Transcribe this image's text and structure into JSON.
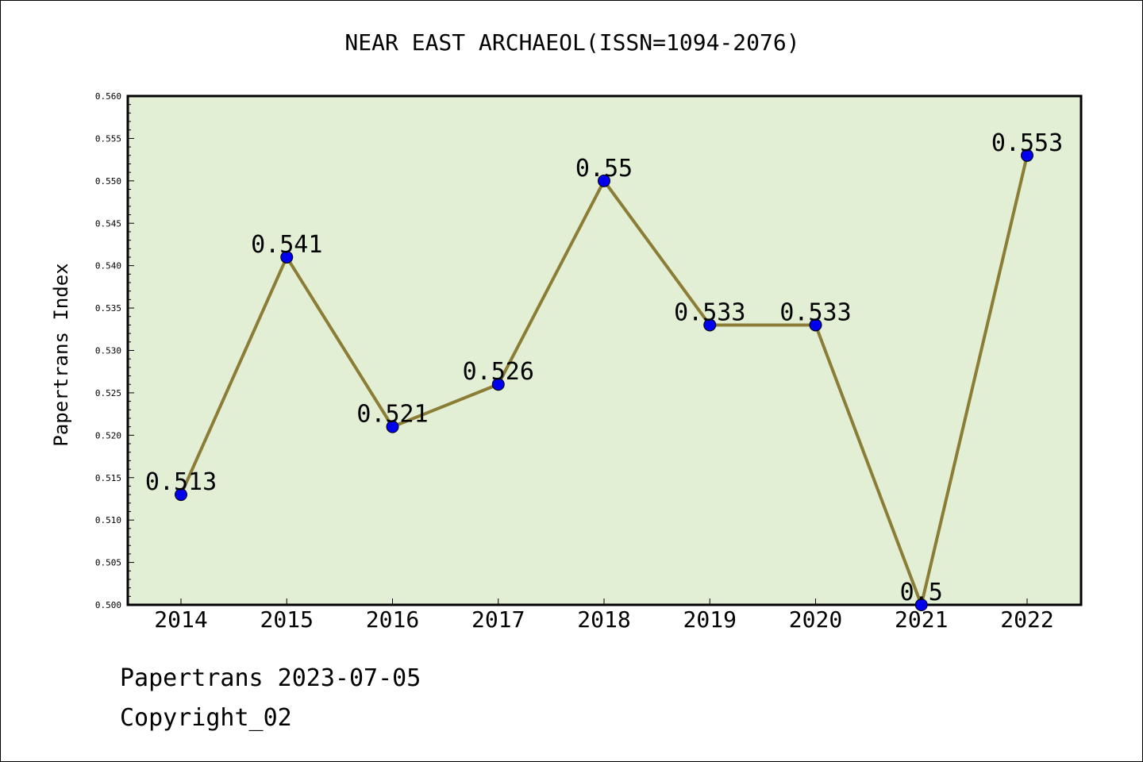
{
  "title": "NEAR EAST ARCHAEOL(ISSN=1094-2076)",
  "footer": {
    "date_text": "Papertrans 2023-07-05",
    "copyright_text": "Copyright_02"
  },
  "chart_data": {
    "type": "line",
    "title": "NEAR EAST ARCHAEOL(ISSN=1094-2076)",
    "ylabel": "Papertrans Index",
    "xlabel": "",
    "categories": [
      "2014",
      "2015",
      "2016",
      "2017",
      "2018",
      "2019",
      "2020",
      "2021",
      "2022"
    ],
    "values": [
      0.513,
      0.541,
      0.521,
      0.526,
      0.55,
      0.533,
      0.533,
      0.5,
      0.553
    ],
    "data_labels": [
      "0.513",
      "0.541",
      "0.521",
      "0.526",
      "0.55",
      "0.533",
      "0.533",
      "0.5",
      "0.553"
    ],
    "ylim": [
      0.5,
      0.56
    ],
    "yticks": [
      "0.500",
      "0.505",
      "0.510",
      "0.515",
      "0.520",
      "0.525",
      "0.530",
      "0.535",
      "0.540",
      "0.545",
      "0.550",
      "0.555",
      "0.560"
    ],
    "grid": false,
    "colors": {
      "plot_background": "#e2efd5",
      "line": "#8c7d36",
      "marker": "#0000ee"
    }
  }
}
